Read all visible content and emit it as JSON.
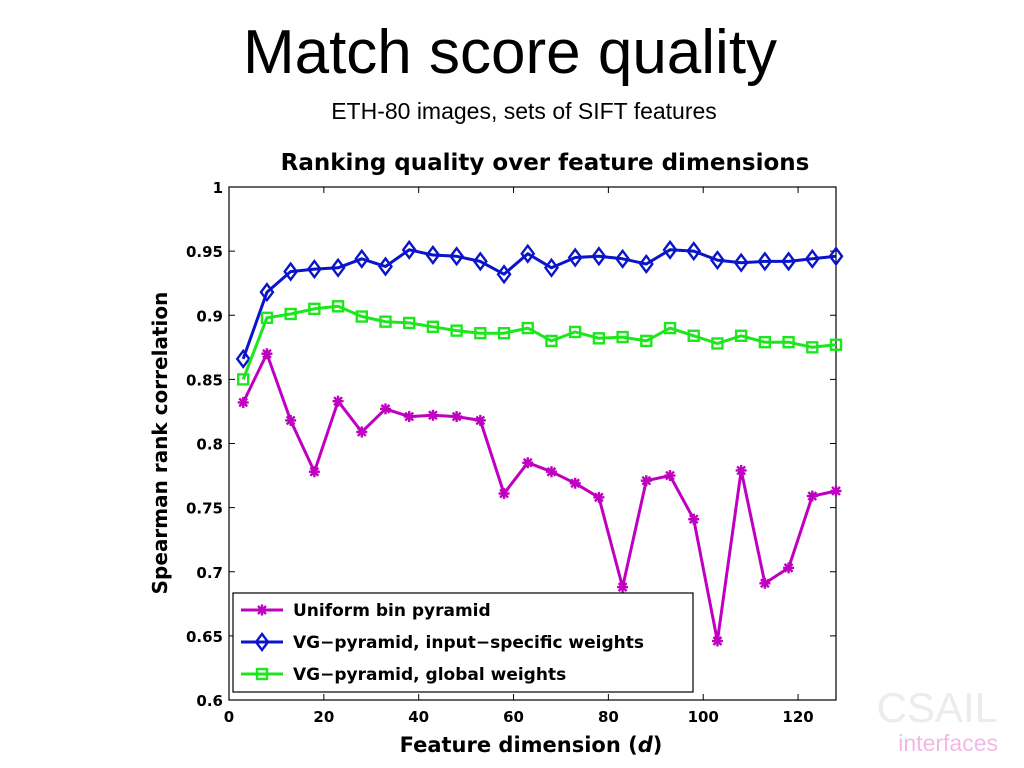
{
  "slide": {
    "title": "Match score quality",
    "subtitle": "ETH-80 images, sets of SIFT features"
  },
  "watermark": {
    "main": "CSAIL",
    "sub": "interfaces"
  },
  "chart_data": {
    "type": "line",
    "title": "Ranking quality over feature dimensions",
    "xlabel": "Feature dimension (d)",
    "ylabel": "Spearman rank correlation",
    "xlim": [
      0,
      128
    ],
    "ylim": [
      0.6,
      1
    ],
    "xticks": [
      0,
      20,
      40,
      60,
      80,
      100,
      120
    ],
    "xtick_labels": [
      "0",
      "20",
      "40",
      "60",
      "80",
      "100",
      "120"
    ],
    "yticks": [
      0.6,
      0.65,
      0.7,
      0.75,
      0.8,
      0.85,
      0.9,
      0.95,
      1
    ],
    "ytick_labels": [
      "0.6",
      "0.65",
      "0.7",
      "0.75",
      "0.8",
      "0.85",
      "0.9",
      "0.95",
      "1"
    ],
    "grid": false,
    "legend_position": "bottom-left",
    "x": [
      3,
      8,
      13,
      18,
      23,
      28,
      33,
      38,
      43,
      48,
      53,
      58,
      63,
      68,
      73,
      78,
      83,
      88,
      93,
      98,
      103,
      108,
      113,
      118,
      123,
      128
    ],
    "series": [
      {
        "name": "Uniform bin pyramid",
        "color": "#c000c0",
        "marker": "asterisk",
        "values": [
          0.832,
          0.87,
          0.818,
          0.778,
          0.833,
          0.809,
          0.827,
          0.821,
          0.822,
          0.821,
          0.818,
          0.761,
          0.785,
          0.778,
          0.769,
          0.758,
          0.688,
          0.771,
          0.775,
          0.741,
          0.646,
          0.779,
          0.691,
          0.703,
          0.759,
          0.763
        ]
      },
      {
        "name": "VG−pyramid, input−specific weights",
        "color": "#0a14c8",
        "marker": "diamond",
        "values": [
          0.866,
          0.918,
          0.934,
          0.936,
          0.937,
          0.944,
          0.938,
          0.951,
          0.947,
          0.946,
          0.942,
          0.932,
          0.948,
          0.937,
          0.945,
          0.946,
          0.944,
          0.94,
          0.951,
          0.95,
          0.943,
          0.941,
          0.942,
          0.942,
          0.944,
          0.946
        ]
      },
      {
        "name": "VG−pyramid, global weights",
        "color": "#1ee61e",
        "marker": "square",
        "values": [
          0.85,
          0.898,
          0.901,
          0.905,
          0.907,
          0.899,
          0.895,
          0.894,
          0.891,
          0.888,
          0.886,
          0.886,
          0.89,
          0.88,
          0.887,
          0.882,
          0.883,
          0.88,
          0.89,
          0.884,
          0.878,
          0.884,
          0.879,
          0.879,
          0.875,
          0.877
        ]
      }
    ]
  }
}
